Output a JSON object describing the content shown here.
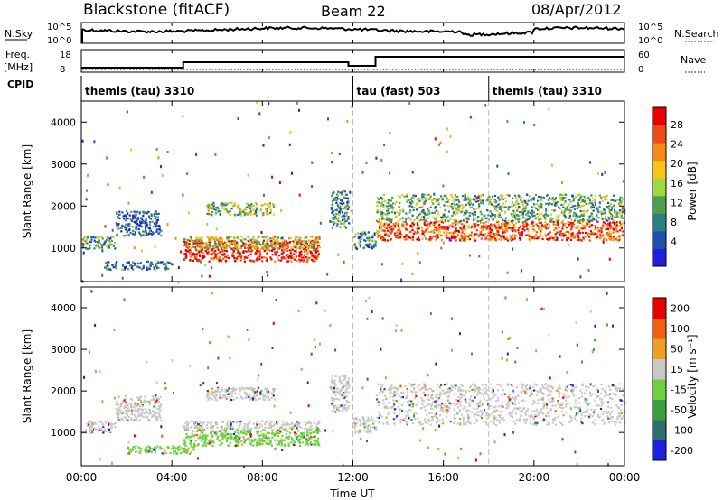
{
  "header": {
    "title": "Blackstone (fitACF)",
    "beam": "Beam 22",
    "date": "08/Apr/2012"
  },
  "status_panels": {
    "nsky_label": "N.Sky",
    "nsky_ticks": [
      "10^5",
      "10^0"
    ],
    "nsearch_label": "N.Search",
    "nsearch_ticks": [
      "10^5",
      "10^0"
    ],
    "freq_label": "Freq.",
    "freq_unit": "[MHz]",
    "freq_ticks": [
      "18",
      "8"
    ],
    "nave_label": "Nave",
    "nave_ticks": [
      "60",
      "0"
    ],
    "cpid_label": "CPID",
    "cpid_segments": [
      {
        "label": "themis (tau) 3310",
        "start_hour": 0
      },
      {
        "label": "tau (fast) 503",
        "start_hour": 12
      },
      {
        "label": "themis (tau) 3310",
        "start_hour": 18
      }
    ]
  },
  "chart_data": [
    {
      "type": "heatmap",
      "panel": "power",
      "ylabel": "Slant Range [km]",
      "yticks": [
        "1000",
        "2000",
        "3000",
        "4000"
      ],
      "ylim": [
        200,
        4500
      ],
      "xlim": [
        0,
        24
      ],
      "colorbar": {
        "label": "Power [dB]",
        "ticks": [
          "4",
          "8",
          "12",
          "16",
          "20",
          "24",
          "28"
        ],
        "colors": [
          "#1f1fe0",
          "#1f4fb0",
          "#2c7f7f",
          "#4f9f4f",
          "#9fd840",
          "#f5c518",
          "#f58a18",
          "#f04a18",
          "#e80000"
        ]
      },
      "regions": [
        {
          "t": [
            0.0,
            1.5
          ],
          "range": [
            1000,
            1300
          ],
          "level": 0.35
        },
        {
          "t": [
            1.5,
            3.5
          ],
          "range": [
            1300,
            1900
          ],
          "level": 0.2
        },
        {
          "t": [
            1.0,
            4.0
          ],
          "range": [
            500,
            700
          ],
          "level": 0.25
        },
        {
          "t": [
            4.5,
            10.5
          ],
          "range": [
            700,
            1200
          ],
          "level": 0.95
        },
        {
          "t": [
            4.5,
            10.5
          ],
          "range": [
            1000,
            1300
          ],
          "level": 0.55
        },
        {
          "t": [
            5.5,
            8.5
          ],
          "range": [
            1800,
            2100
          ],
          "level": 0.45
        },
        {
          "t": [
            11.0,
            11.8
          ],
          "range": [
            1500,
            2400
          ],
          "level": 0.3
        },
        {
          "t": [
            12.0,
            13.0
          ],
          "range": [
            1000,
            1400
          ],
          "level": 0.3
        },
        {
          "t": [
            13.0,
            24.0
          ],
          "range": [
            1200,
            1650
          ],
          "level": 0.85
        },
        {
          "t": [
            13.0,
            24.0
          ],
          "range": [
            1650,
            2300
          ],
          "level": 0.4
        }
      ]
    },
    {
      "type": "heatmap",
      "panel": "velocity",
      "ylabel": "Slant Range [km]",
      "yticks": [
        "1000",
        "2000",
        "3000",
        "4000"
      ],
      "ylim": [
        200,
        4500
      ],
      "xlim": [
        0,
        24
      ],
      "xlabel": "Time UT",
      "xticks": [
        "00:00",
        "04:00",
        "08:00",
        "12:00",
        "16:00",
        "20:00",
        "00:00"
      ],
      "colorbar": {
        "label": "Velocity [m s⁻¹]",
        "ticks": [
          "200",
          "100",
          "50",
          "15",
          "-15",
          "-50",
          "-100",
          "-200"
        ],
        "colors": [
          "#1f1fe0",
          "#2c6f6f",
          "#3f9f3f",
          "#6fd040",
          "#c8c8c8",
          "#f0a020",
          "#f06010",
          "#e80000"
        ]
      },
      "regions": [
        {
          "t": [
            0.0,
            1.5
          ],
          "range": [
            1000,
            1300
          ],
          "color": "#c8c8c8"
        },
        {
          "t": [
            1.5,
            3.5
          ],
          "range": [
            1300,
            1900
          ],
          "color": "#c8c8c8"
        },
        {
          "t": [
            2.0,
            5.0
          ],
          "range": [
            500,
            700
          ],
          "color": "#6fd040"
        },
        {
          "t": [
            4.5,
            10.5
          ],
          "range": [
            700,
            1100
          ],
          "color": "#6fd040"
        },
        {
          "t": [
            4.5,
            10.5
          ],
          "range": [
            1100,
            1300
          ],
          "color": "#c8c8c8"
        },
        {
          "t": [
            5.5,
            8.5
          ],
          "range": [
            1800,
            2100
          ],
          "color": "#c8c8c8"
        },
        {
          "t": [
            11.0,
            11.8
          ],
          "range": [
            1500,
            2400
          ],
          "color": "#c8c8c8"
        },
        {
          "t": [
            12.0,
            13.0
          ],
          "range": [
            1000,
            1400
          ],
          "color": "#c8c8c8"
        },
        {
          "t": [
            13.0,
            24.0
          ],
          "range": [
            1200,
            2200
          ],
          "color": "#c8c8c8"
        }
      ]
    }
  ]
}
